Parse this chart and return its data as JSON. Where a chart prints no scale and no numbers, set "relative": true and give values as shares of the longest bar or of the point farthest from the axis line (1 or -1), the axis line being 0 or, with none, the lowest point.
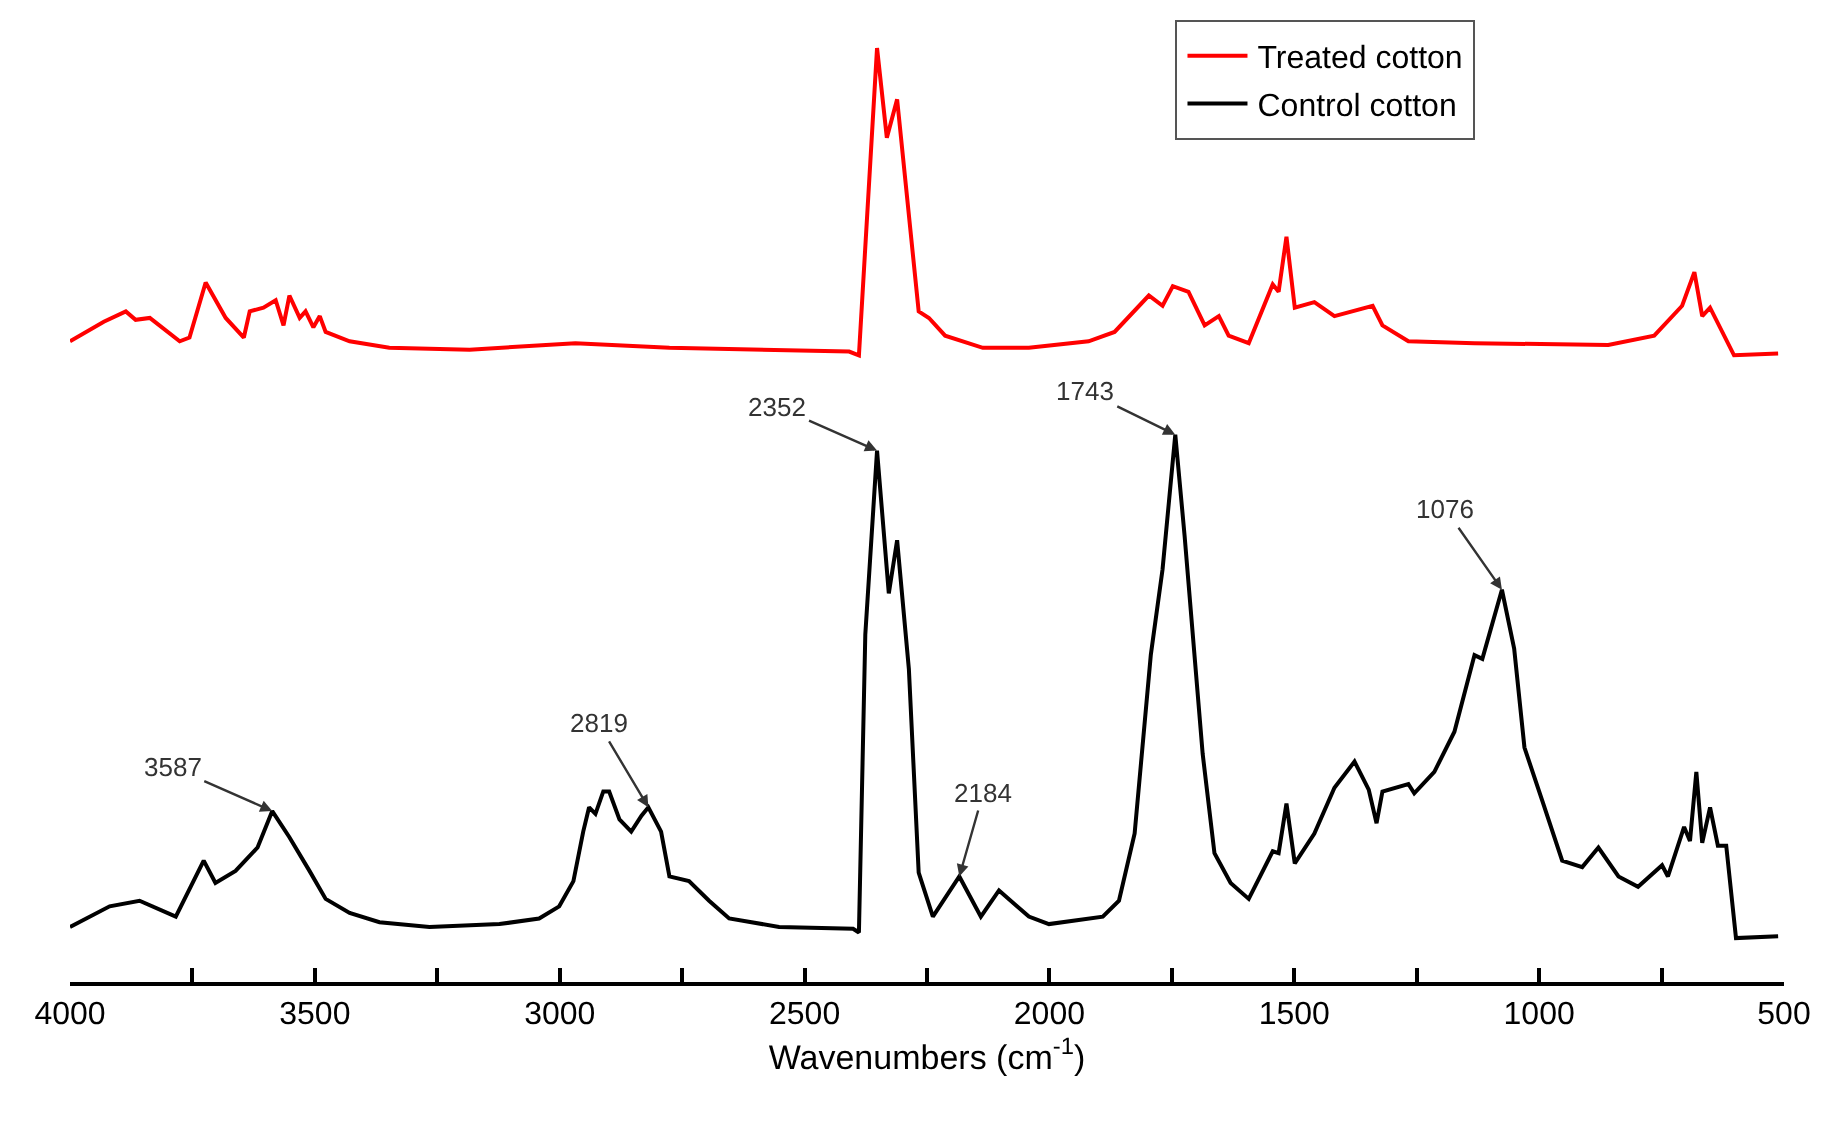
{
  "chart_data": {
    "type": "line",
    "relative": true,
    "xlabel": "Wavenumbers (cm$^{-1}$)",
    "xlim": [
      4000,
      500
    ],
    "xticks": [
      4000,
      {
        "value": 3750,
        "label": null
      },
      3500,
      {
        "value": 3250,
        "label": null
      },
      3000,
      {
        "value": 2750,
        "label": null
      },
      2500,
      {
        "value": 2250,
        "label": null
      },
      2000,
      {
        "value": 1750,
        "label": null
      },
      1500,
      {
        "value": 1250,
        "label": null
      },
      1000,
      {
        "value": 750,
        "label": null
      },
      500
    ],
    "legend": "top right",
    "marker": "none",
    "line_style": "solid",
    "series": [
      {
        "name": "Treated cotton",
        "color": "#ff0000",
        "x": [
          4000,
          3931,
          3886,
          3866,
          3837,
          3776,
          3756,
          3723,
          3682,
          3645,
          3633,
          3605,
          3580,
          3564,
          3552,
          3531,
          3519,
          3503,
          3490,
          3478,
          3429,
          3348,
          3184,
          2968,
          2776,
          2409,
          2389,
          2352,
          2332,
          2311,
          2267,
          2246,
          2213,
          2136,
          2042,
          1920,
          1867,
          1797,
          1769,
          1748,
          1716,
          1683,
          1654,
          1634,
          1593,
          1544,
          1532,
          1516,
          1499,
          1459,
          1418,
          1340,
          1320,
          1267,
          1132,
          859,
          765,
          708,
          683,
          667,
          651,
          602,
          512
        ],
        "values": [
          0.686,
          0.707,
          0.718,
          0.709,
          0.711,
          0.686,
          0.69,
          0.749,
          0.711,
          0.69,
          0.718,
          0.722,
          0.73,
          0.703,
          0.735,
          0.711,
          0.718,
          0.701,
          0.713,
          0.696,
          0.686,
          0.679,
          0.677,
          0.684,
          0.679,
          0.675,
          0.671,
          1.0,
          0.904,
          0.945,
          0.718,
          0.711,
          0.692,
          0.679,
          0.679,
          0.686,
          0.696,
          0.735,
          0.724,
          0.745,
          0.739,
          0.703,
          0.713,
          0.692,
          0.684,
          0.747,
          0.739,
          0.798,
          0.722,
          0.728,
          0.713,
          0.724,
          0.703,
          0.686,
          0.684,
          0.682,
          0.692,
          0.724,
          0.76,
          0.713,
          0.722,
          0.671,
          0.673
        ]
      },
      {
        "name": "Control cotton",
        "color": "#000000",
        "x": [
          4000,
          3919,
          3858,
          3784,
          3727,
          3703,
          3662,
          3617,
          3587,
          3552,
          3511,
          3478,
          3429,
          3368,
          3266,
          3123,
          3042,
          3001,
          2972,
          2952,
          2940,
          2927,
          2911,
          2899,
          2878,
          2854,
          2833,
          2819,
          2793,
          2776,
          2736,
          2695,
          2654,
          2552,
          2401,
          2389,
          2376,
          2352,
          2328,
          2311,
          2287,
          2267,
          2238,
          2184,
          2140,
          2103,
          2042,
          2001,
          1891,
          1858,
          1826,
          1793,
          1769,
          1743,
          1724,
          1687,
          1663,
          1630,
          1593,
          1544,
          1532,
          1516,
          1499,
          1459,
          1418,
          1377,
          1348,
          1332,
          1320,
          1267,
          1255,
          1214,
          1173,
          1132,
          1116,
          1076,
          1051,
          1030,
          993,
          953,
          912,
          879,
          838,
          798,
          749,
          737,
          704,
          692,
          679,
          667,
          651,
          635,
          618,
          598,
          512
        ],
        "values": [
          0.059,
          0.081,
          0.087,
          0.07,
          0.13,
          0.106,
          0.119,
          0.144,
          0.183,
          0.155,
          0.119,
          0.089,
          0.074,
          0.064,
          0.059,
          0.062,
          0.068,
          0.081,
          0.108,
          0.161,
          0.187,
          0.18,
          0.204,
          0.204,
          0.174,
          0.161,
          0.178,
          0.187,
          0.161,
          0.113,
          0.108,
          0.087,
          0.068,
          0.059,
          0.057,
          0.053,
          0.372,
          0.569,
          0.416,
          0.473,
          0.335,
          0.117,
          0.07,
          0.113,
          0.07,
          0.098,
          0.07,
          0.062,
          0.07,
          0.087,
          0.159,
          0.35,
          0.442,
          0.586,
          0.478,
          0.244,
          0.138,
          0.106,
          0.089,
          0.14,
          0.138,
          0.191,
          0.127,
          0.159,
          0.208,
          0.236,
          0.206,
          0.17,
          0.204,
          0.212,
          0.202,
          0.225,
          0.268,
          0.35,
          0.346,
          0.42,
          0.357,
          0.251,
          0.193,
          0.13,
          0.123,
          0.144,
          0.113,
          0.102,
          0.125,
          0.113,
          0.166,
          0.151,
          0.225,
          0.149,
          0.187,
          0.146,
          0.146,
          0.047,
          0.049
        ]
      }
    ],
    "annotations": [
      {
        "text": "3587",
        "x": 3587,
        "y": 0.183
      },
      {
        "text": "2819",
        "x": 2819,
        "y": 0.187
      },
      {
        "text": "2352",
        "x": 2352,
        "y": 0.569
      },
      {
        "text": "2184",
        "x": 2184,
        "y": 0.113
      },
      {
        "text": "1743",
        "x": 1743,
        "y": 0.586
      },
      {
        "text": "1076",
        "x": 1076,
        "y": 0.42
      }
    ]
  }
}
